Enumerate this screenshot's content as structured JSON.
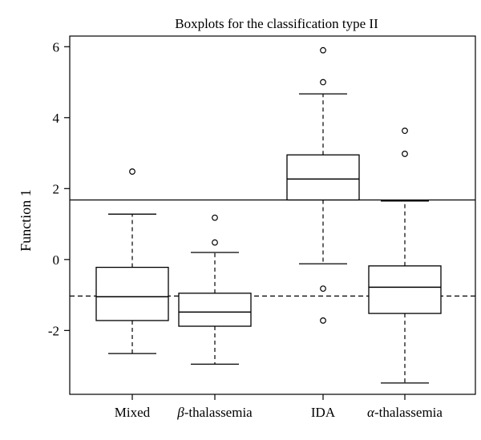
{
  "chart_data": {
    "type": "box",
    "title": "Boxplots for the classification type II",
    "ylabel": "Function 1",
    "xlabel": "",
    "ylim": [
      -3.8,
      6.3
    ],
    "yticks": [
      -2,
      0,
      2,
      4,
      6
    ],
    "categories": [
      {
        "label": "Mixed",
        "prefix": "",
        "suffix": "Mixed"
      },
      {
        "label": "β-thalassemia",
        "prefix": "β",
        "suffix": "-thalassemia"
      },
      {
        "label": "IDA",
        "prefix": "",
        "suffix": "IDA"
      },
      {
        "label": "α-thalassemia",
        "prefix": "α",
        "suffix": "-thalassemia"
      }
    ],
    "boxes": [
      {
        "whisker_low": -2.65,
        "q1": -1.72,
        "median": -1.05,
        "q3": -0.22,
        "whisker_high": 1.28,
        "outliers": [
          2.48
        ]
      },
      {
        "whisker_low": -2.95,
        "q1": -1.88,
        "median": -1.48,
        "q3": -0.95,
        "whisker_high": 0.2,
        "outliers": [
          0.48,
          1.18
        ]
      },
      {
        "whisker_low": -0.12,
        "q1": 1.68,
        "median": 2.27,
        "q3": 2.95,
        "whisker_high": 4.67,
        "outliers": [
          -0.82,
          -1.72,
          5.0,
          5.9
        ]
      },
      {
        "whisker_low": -3.48,
        "q1": -1.52,
        "median": -0.78,
        "q3": -0.18,
        "whisker_high": 1.65,
        "outliers": [
          2.98,
          3.63
        ]
      }
    ],
    "reference_lines": [
      {
        "value": 1.68,
        "style": "solid"
      },
      {
        "value": -1.03,
        "style": "dashed"
      }
    ],
    "grid": false,
    "legend": "none"
  }
}
